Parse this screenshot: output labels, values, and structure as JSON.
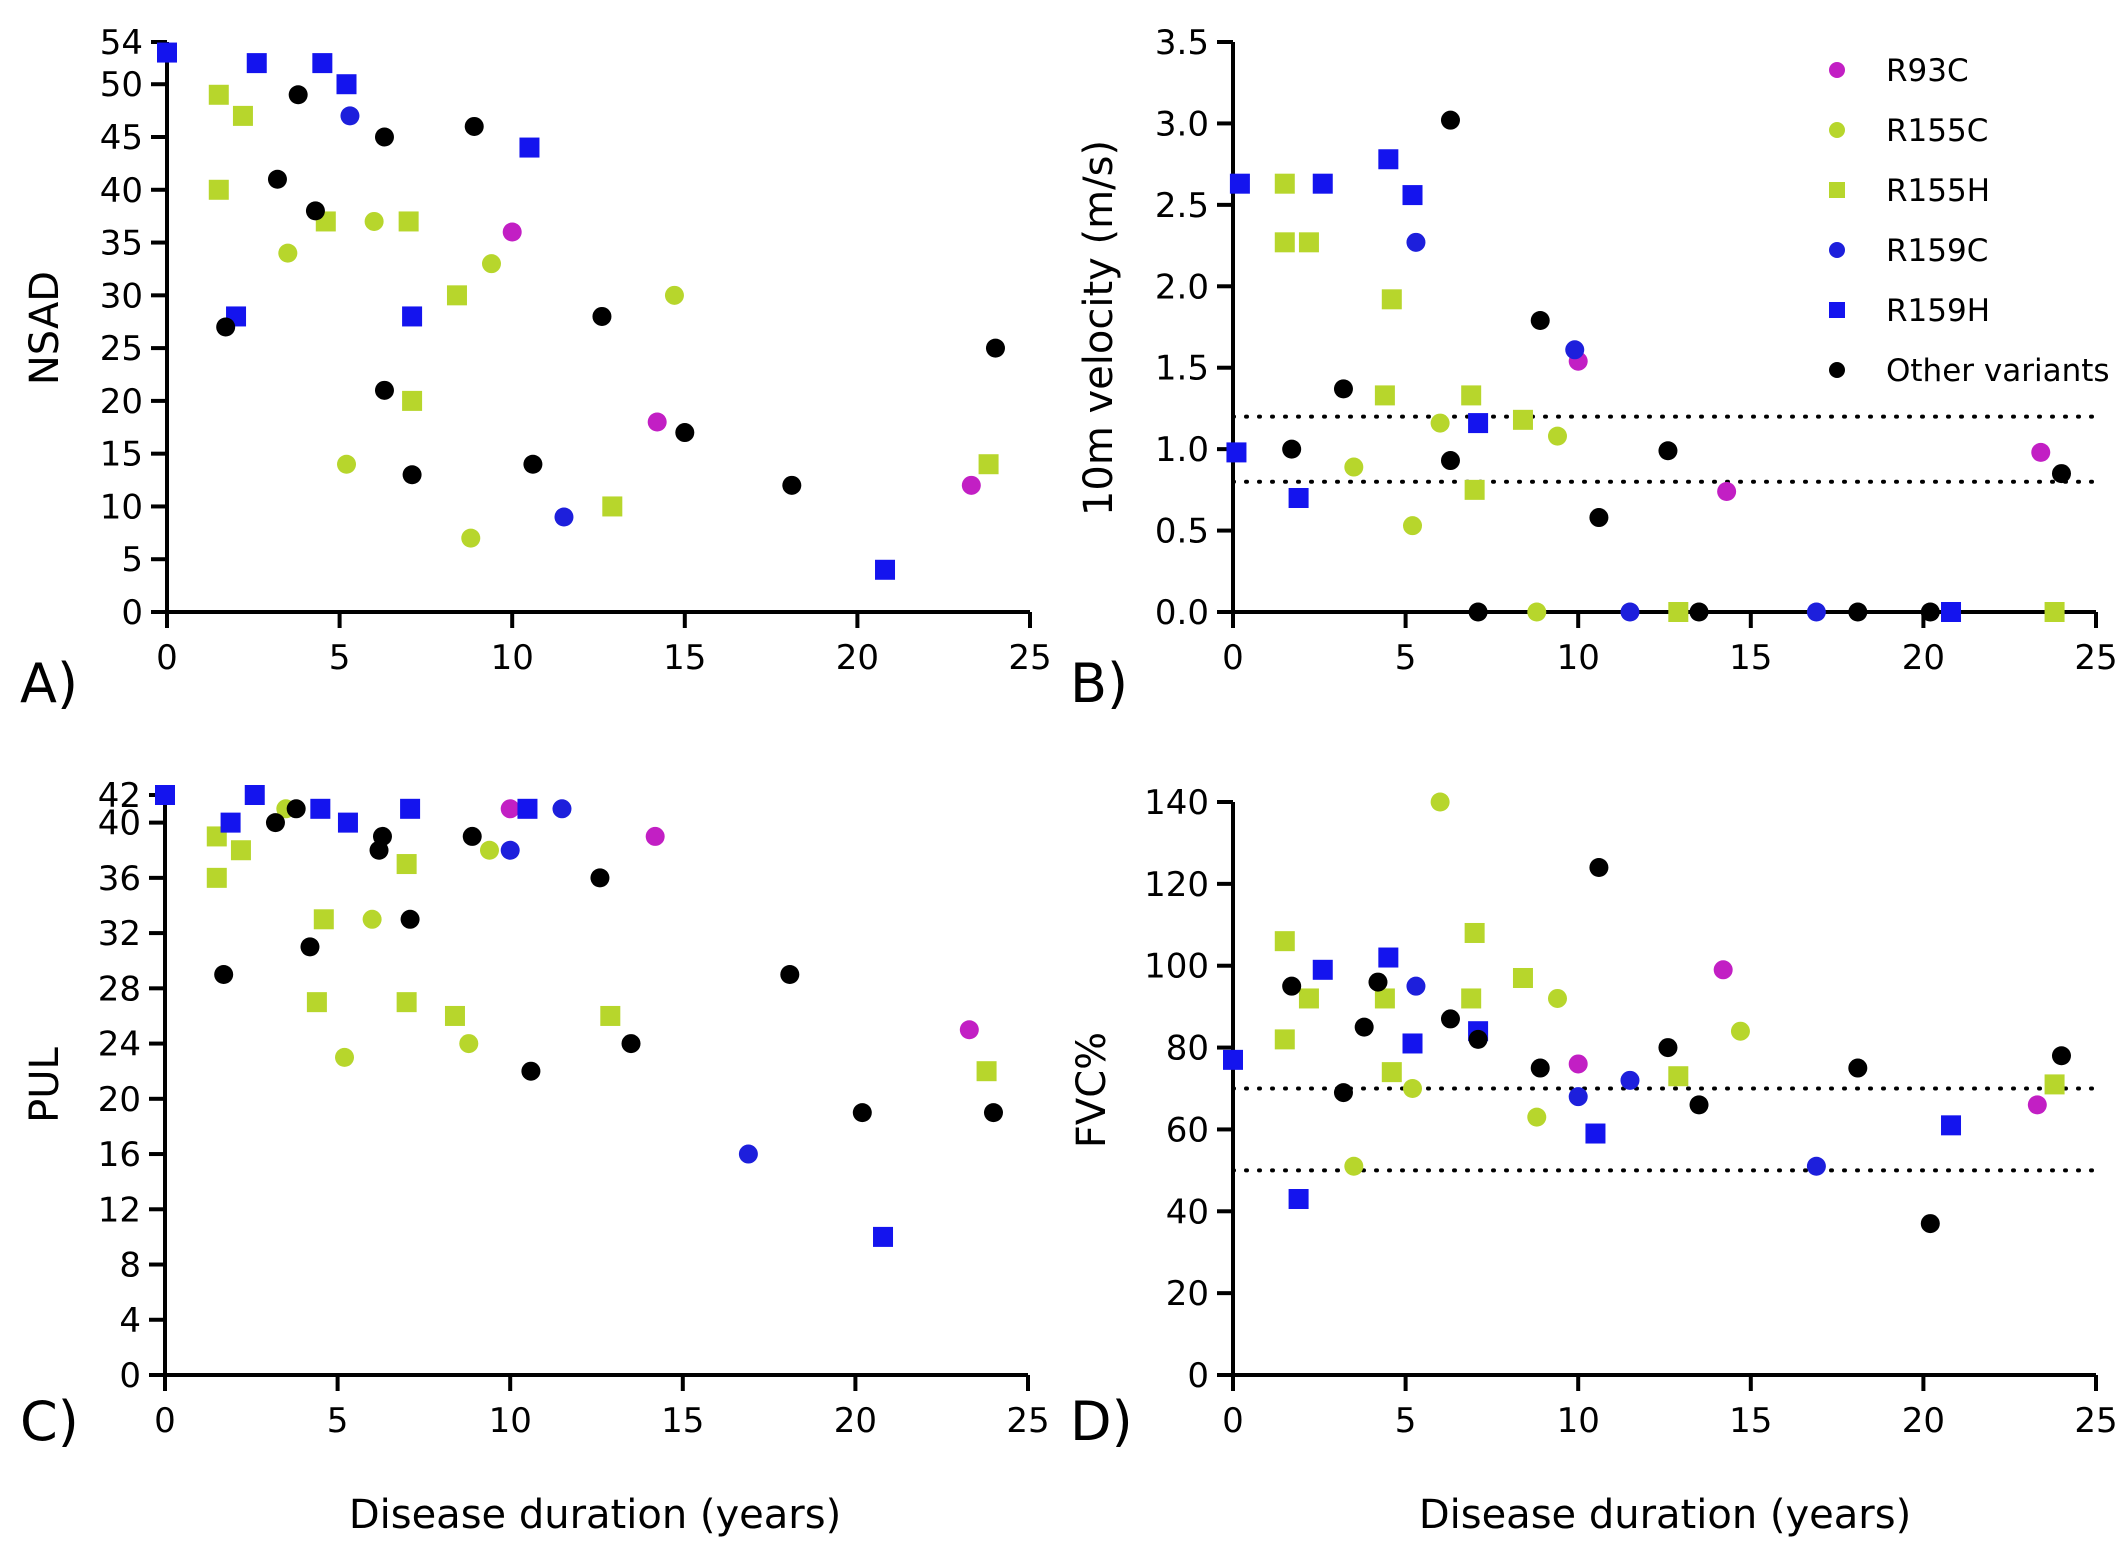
{
  "colors": {
    "R93C": "#c21fc4",
    "R155C": "#b7d62c",
    "R155H": "#b7d62c",
    "R159C": "#1d1fdc",
    "R159H": "#1414ee",
    "Other variants": "#000000"
  },
  "markers": {
    "R93C": "circle",
    "R155C": "circle",
    "R155H": "square",
    "R159C": "circle",
    "R159H": "square",
    "Other variants": "circle"
  },
  "legend": {
    "placement": "top-right of panel B",
    "items": [
      "R93C",
      "R155C",
      "R155H",
      "R159C",
      "R159H",
      "Other variants"
    ]
  },
  "chart_data": [
    {
      "panel": "A)",
      "type": "scatter",
      "xlabel": "",
      "ylabel": "NSAD",
      "xlim": [
        0,
        25
      ],
      "ylim": [
        0,
        54
      ],
      "xticks": [
        0,
        5,
        10,
        15,
        20,
        25
      ],
      "yticks": [
        0,
        5,
        10,
        15,
        20,
        25,
        30,
        35,
        40,
        45,
        50,
        54
      ],
      "reference_lines": [],
      "series": [
        {
          "name": "R93C",
          "points": [
            [
              10,
              36
            ],
            [
              14.2,
              18
            ],
            [
              23.3,
              12
            ]
          ]
        },
        {
          "name": "R155C",
          "points": [
            [
              3.5,
              34
            ],
            [
              5.2,
              14
            ],
            [
              6,
              37
            ],
            [
              8.8,
              7
            ],
            [
              9.4,
              33
            ],
            [
              14.7,
              30
            ]
          ]
        },
        {
          "name": "R155H",
          "points": [
            [
              1.5,
              49
            ],
            [
              1.5,
              40
            ],
            [
              2.2,
              47
            ],
            [
              4.6,
              37
            ],
            [
              7,
              37
            ],
            [
              7.1,
              20
            ],
            [
              8.4,
              30
            ],
            [
              12.9,
              10
            ],
            [
              23.8,
              14
            ]
          ]
        },
        {
          "name": "R159C",
          "points": [
            [
              5.3,
              47
            ],
            [
              11.5,
              9
            ]
          ]
        },
        {
          "name": "R159H",
          "points": [
            [
              0,
              53
            ],
            [
              2,
              28
            ],
            [
              2.6,
              52
            ],
            [
              4.5,
              52
            ],
            [
              5.2,
              50
            ],
            [
              7.1,
              28
            ],
            [
              10.5,
              44
            ],
            [
              20.8,
              4
            ]
          ]
        },
        {
          "name": "Other variants",
          "points": [
            [
              1.7,
              27
            ],
            [
              3.2,
              41
            ],
            [
              3.8,
              49
            ],
            [
              4.3,
              38
            ],
            [
              6.3,
              45
            ],
            [
              6.3,
              21
            ],
            [
              7.1,
              13
            ],
            [
              8.9,
              46
            ],
            [
              10.6,
              14
            ],
            [
              12.6,
              28
            ],
            [
              15,
              17
            ],
            [
              18.1,
              12
            ],
            [
              24,
              25
            ]
          ]
        }
      ]
    },
    {
      "panel": "B)",
      "type": "scatter",
      "xlabel": "",
      "ylabel": "10m velocity (m/s)",
      "xlim": [
        0,
        25
      ],
      "ylim": [
        0,
        3.5
      ],
      "xticks": [
        0,
        5,
        10,
        15,
        20,
        25
      ],
      "yticks": [
        "0.0",
        "0.5",
        "1.0",
        "1.5",
        "2.0",
        "2.5",
        "3.0",
        "3.5"
      ],
      "reference_lines": [
        1.2,
        0.8
      ],
      "series": [
        {
          "name": "R93C",
          "points": [
            [
              10,
              1.54
            ],
            [
              14.3,
              0.74
            ],
            [
              23.4,
              0.98
            ]
          ]
        },
        {
          "name": "R155C",
          "points": [
            [
              3.5,
              0.89
            ],
            [
              5.2,
              0.53
            ],
            [
              6,
              1.16
            ],
            [
              8.8,
              0
            ],
            [
              9.4,
              1.08
            ]
          ]
        },
        {
          "name": "R155H",
          "points": [
            [
              1.5,
              2.63
            ],
            [
              1.5,
              2.27
            ],
            [
              2.2,
              2.27
            ],
            [
              4.4,
              1.33
            ],
            [
              4.6,
              1.92
            ],
            [
              6.9,
              1.33
            ],
            [
              7,
              0.75
            ],
            [
              8.4,
              1.18
            ],
            [
              12.9,
              0
            ],
            [
              23.8,
              0
            ]
          ]
        },
        {
          "name": "R159C",
          "points": [
            [
              5.3,
              2.27
            ],
            [
              9.9,
              1.61
            ],
            [
              11.5,
              0
            ],
            [
              16.9,
              0
            ]
          ]
        },
        {
          "name": "R159H",
          "points": [
            [
              0.1,
              0.98
            ],
            [
              0.2,
              2.63
            ],
            [
              1.9,
              0.7
            ],
            [
              2.6,
              2.63
            ],
            [
              4.5,
              2.78
            ],
            [
              5.2,
              2.56
            ],
            [
              7.1,
              1.16
            ],
            [
              20.8,
              0
            ]
          ]
        },
        {
          "name": "Other variants",
          "points": [
            [
              1.7,
              1
            ],
            [
              3.2,
              1.37
            ],
            [
              6.3,
              0.93
            ],
            [
              6.3,
              3.02
            ],
            [
              7.1,
              0
            ],
            [
              8.9,
              1.79
            ],
            [
              10.6,
              0.58
            ],
            [
              12.6,
              0.99
            ],
            [
              13.5,
              0
            ],
            [
              18.1,
              0
            ],
            [
              20.2,
              0
            ],
            [
              24,
              0.85
            ]
          ]
        }
      ]
    },
    {
      "panel": "C)",
      "type": "scatter",
      "xlabel": "Disease duration (years)",
      "ylabel": "PUL",
      "xlim": [
        0,
        25
      ],
      "ylim": [
        0,
        42
      ],
      "xticks": [
        0,
        5,
        10,
        15,
        20,
        25
      ],
      "yticks": [
        0,
        4,
        8,
        12,
        16,
        20,
        24,
        28,
        32,
        36,
        40,
        42
      ],
      "reference_lines": [],
      "series": [
        {
          "name": "R93C",
          "points": [
            [
              10,
              41
            ],
            [
              14.2,
              39
            ],
            [
              23.3,
              25
            ]
          ]
        },
        {
          "name": "R155C",
          "points": [
            [
              3.5,
              41
            ],
            [
              5.2,
              23
            ],
            [
              6,
              33
            ],
            [
              8.8,
              24
            ],
            [
              9.4,
              38
            ]
          ]
        },
        {
          "name": "R155H",
          "points": [
            [
              1.5,
              39
            ],
            [
              1.5,
              36
            ],
            [
              2.2,
              38
            ],
            [
              4.4,
              27
            ],
            [
              4.6,
              33
            ],
            [
              7,
              37
            ],
            [
              7,
              27
            ],
            [
              8.4,
              26
            ],
            [
              12.9,
              26
            ],
            [
              23.8,
              22
            ]
          ]
        },
        {
          "name": "R159C",
          "points": [
            [
              10,
              38
            ],
            [
              11.5,
              41
            ],
            [
              16.9,
              16
            ]
          ]
        },
        {
          "name": "R159H",
          "points": [
            [
              0,
              42
            ],
            [
              1.9,
              40
            ],
            [
              2.6,
              42
            ],
            [
              4.5,
              41
            ],
            [
              5.3,
              40
            ],
            [
              7.1,
              41
            ],
            [
              10.5,
              41
            ],
            [
              20.8,
              10
            ]
          ]
        },
        {
          "name": "Other variants",
          "points": [
            [
              1.7,
              29
            ],
            [
              3.2,
              40
            ],
            [
              3.8,
              41
            ],
            [
              4.2,
              31
            ],
            [
              6.2,
              38
            ],
            [
              6.3,
              39
            ],
            [
              7.1,
              33
            ],
            [
              8.9,
              39
            ],
            [
              10.6,
              22
            ],
            [
              12.6,
              36
            ],
            [
              13.5,
              24
            ],
            [
              18.1,
              29
            ],
            [
              20.2,
              19
            ],
            [
              24,
              19
            ]
          ]
        }
      ]
    },
    {
      "panel": "D)",
      "type": "scatter",
      "xlabel": "Disease duration (years)",
      "ylabel": "FVC%",
      "xlim": [
        0,
        25
      ],
      "ylim": [
        0,
        140
      ],
      "xticks": [
        0,
        5,
        10,
        15,
        20,
        25
      ],
      "yticks": [
        0,
        20,
        40,
        60,
        80,
        100,
        120,
        140
      ],
      "reference_lines": [
        70,
        50
      ],
      "series": [
        {
          "name": "R93C",
          "points": [
            [
              10,
              76
            ],
            [
              14.2,
              99
            ],
            [
              23.3,
              66
            ]
          ]
        },
        {
          "name": "R155C",
          "points": [
            [
              3.5,
              51
            ],
            [
              5.2,
              70
            ],
            [
              6,
              140
            ],
            [
              8.8,
              63
            ],
            [
              9.4,
              92
            ],
            [
              14.7,
              84
            ]
          ]
        },
        {
          "name": "R155H",
          "points": [
            [
              1.5,
              106
            ],
            [
              1.5,
              82
            ],
            [
              2.2,
              92
            ],
            [
              4.4,
              92
            ],
            [
              4.6,
              74
            ],
            [
              6.9,
              92
            ],
            [
              7,
              108
            ],
            [
              8.4,
              97
            ],
            [
              12.9,
              73
            ],
            [
              23.8,
              71
            ]
          ]
        },
        {
          "name": "R159C",
          "points": [
            [
              5.3,
              95
            ],
            [
              10,
              68
            ],
            [
              11.5,
              72
            ],
            [
              16.9,
              51
            ]
          ]
        },
        {
          "name": "R159H",
          "points": [
            [
              0,
              77
            ],
            [
              1.9,
              43
            ],
            [
              2.6,
              99
            ],
            [
              4.5,
              102
            ],
            [
              5.2,
              81
            ],
            [
              7.1,
              84
            ],
            [
              10.5,
              59
            ],
            [
              20.8,
              61
            ]
          ]
        },
        {
          "name": "Other variants",
          "points": [
            [
              1.7,
              95
            ],
            [
              3.2,
              69
            ],
            [
              3.8,
              85
            ],
            [
              4.2,
              96
            ],
            [
              6.3,
              87
            ],
            [
              7.1,
              82
            ],
            [
              8.9,
              75
            ],
            [
              10.6,
              124
            ],
            [
              12.6,
              80
            ],
            [
              13.5,
              66
            ],
            [
              18.1,
              75
            ],
            [
              20.2,
              37
            ],
            [
              24,
              78
            ]
          ]
        }
      ]
    }
  ]
}
